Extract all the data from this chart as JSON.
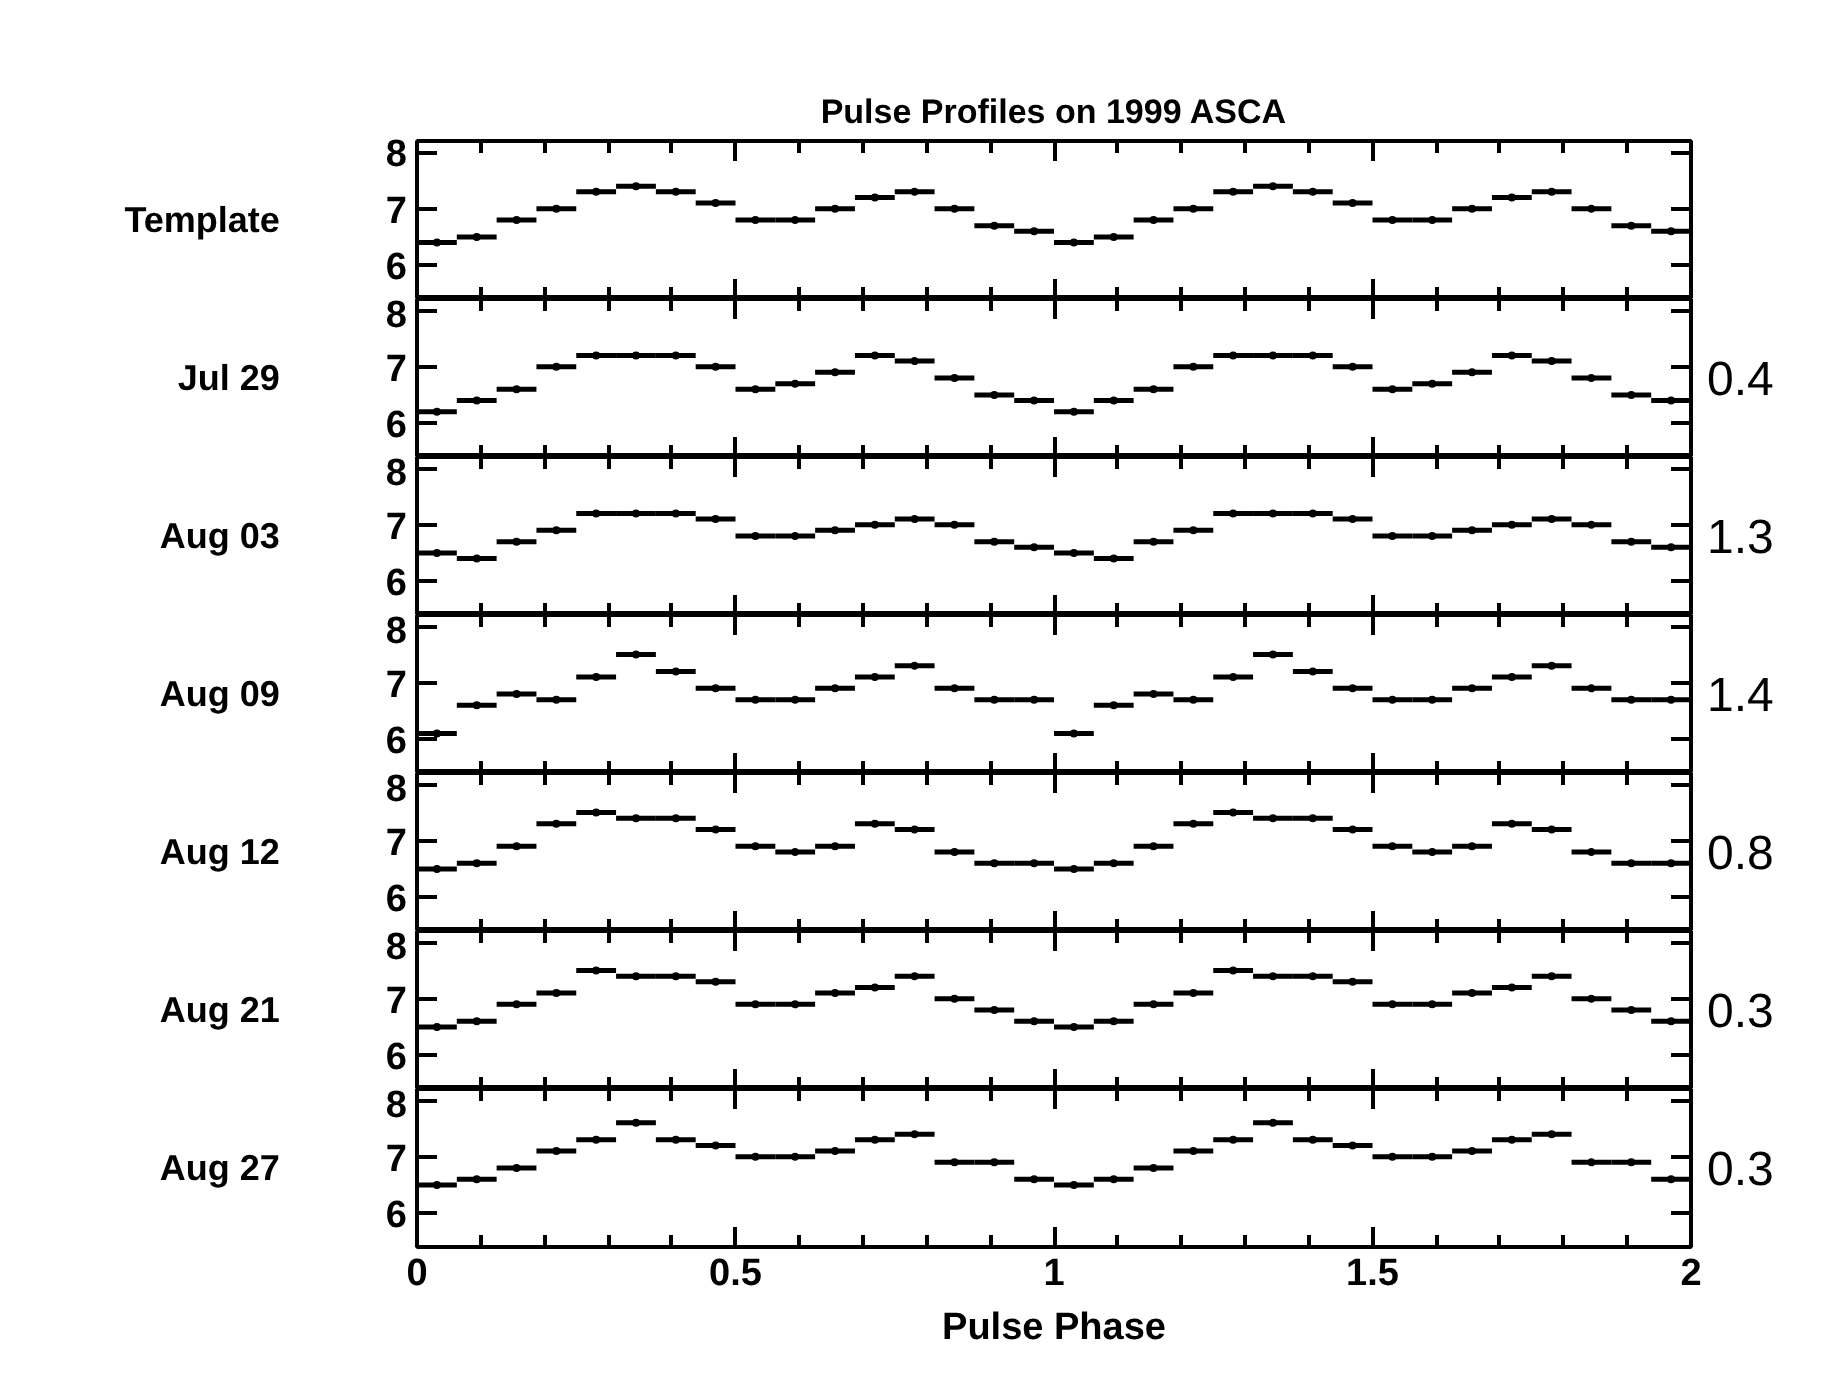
{
  "chart_data": [
    {
      "type": "scatter",
      "title": "Pulse Profiles on 1999 ASCA",
      "ylabel": "Template",
      "marker": "none",
      "grid": false,
      "tick_labels": "y",
      "xlim": [
        0,
        2
      ],
      "ylim": [
        5.4,
        8.2
      ],
      "yticks": [
        6,
        7,
        8
      ],
      "xticks": [
        0,
        {
          "value": 0.1,
          "label": null
        },
        {
          "value": 0.2,
          "label": null
        },
        {
          "value": 0.3,
          "label": null
        },
        {
          "value": 0.4,
          "label": null
        },
        0.5,
        {
          "value": 0.6,
          "label": null
        },
        {
          "value": 0.7,
          "label": null
        },
        {
          "value": 0.8,
          "label": null
        },
        {
          "value": 0.9,
          "label": null
        },
        1,
        {
          "value": 1.1,
          "label": null
        },
        {
          "value": 1.2,
          "label": null
        },
        {
          "value": 1.3,
          "label": null
        },
        {
          "value": 1.4,
          "label": null
        },
        1.5,
        {
          "value": 1.6,
          "label": null
        },
        {
          "value": 1.7,
          "label": null
        },
        {
          "value": 1.8,
          "label": null
        },
        {
          "value": 1.9,
          "label": null
        },
        2
      ],
      "x": [
        0.03125,
        0.09375,
        0.15625,
        0.21875,
        0.28125,
        0.34375,
        0.40625,
        0.46875,
        0.53125,
        0.59375,
        0.65625,
        0.71875,
        0.78125,
        0.84375,
        0.90625,
        0.96875,
        1.03125,
        1.09375,
        1.15625,
        1.21875,
        1.28125,
        1.34375,
        1.40625,
        1.46875,
        1.53125,
        1.59375,
        1.65625,
        1.71875,
        1.78125,
        1.84375,
        1.90625,
        1.96875
      ],
      "series": [
        {
          "color": "#000000",
          "values": [
            6.4,
            6.5,
            6.8,
            7.0,
            7.3,
            7.4,
            7.3,
            7.1,
            6.8,
            6.8,
            7.0,
            7.2,
            7.3,
            7.0,
            6.7,
            6.6,
            6.4,
            6.5,
            6.8,
            7.0,
            7.3,
            7.4,
            7.3,
            7.1,
            6.8,
            6.8,
            7.0,
            7.2,
            7.3,
            7.0,
            6.7,
            6.6
          ],
          "xerrors": [
            0.03125,
            0.03125,
            0.03125,
            0.03125,
            0.03125,
            0.03125,
            0.03125,
            0.03125,
            0.03125,
            0.03125,
            0.03125,
            0.03125,
            0.03125,
            0.03125,
            0.03125,
            0.03125,
            0.03125,
            0.03125,
            0.03125,
            0.03125,
            0.03125,
            0.03125,
            0.03125,
            0.03125,
            0.03125,
            0.03125,
            0.03125,
            0.03125,
            0.03125,
            0.03125,
            0.03125,
            0.03125
          ],
          "errors": [
            0.05,
            0.05,
            0.05,
            0.05,
            0.05,
            0.05,
            0.05,
            0.05,
            0.05,
            0.05,
            0.05,
            0.05,
            0.05,
            0.05,
            0.05,
            0.05,
            0.05,
            0.05,
            0.05,
            0.05,
            0.05,
            0.05,
            0.05,
            0.05,
            0.05,
            0.05,
            0.05,
            0.05,
            0.05,
            0.05,
            0.05,
            0.05
          ]
        }
      ]
    },
    {
      "type": "scatter",
      "ylabel": "Jul 29",
      "annotations": [
        "0.4"
      ],
      "marker": "none",
      "grid": false,
      "tick_labels": "y",
      "xlim": [
        0,
        2
      ],
      "ylim": [
        5.4,
        8.2
      ],
      "yticks": [
        6,
        7,
        8
      ],
      "xticks": [
        0,
        {
          "value": 0.1,
          "label": null
        },
        {
          "value": 0.2,
          "label": null
        },
        {
          "value": 0.3,
          "label": null
        },
        {
          "value": 0.4,
          "label": null
        },
        0.5,
        {
          "value": 0.6,
          "label": null
        },
        {
          "value": 0.7,
          "label": null
        },
        {
          "value": 0.8,
          "label": null
        },
        {
          "value": 0.9,
          "label": null
        },
        1,
        {
          "value": 1.1,
          "label": null
        },
        {
          "value": 1.2,
          "label": null
        },
        {
          "value": 1.3,
          "label": null
        },
        {
          "value": 1.4,
          "label": null
        },
        1.5,
        {
          "value": 1.6,
          "label": null
        },
        {
          "value": 1.7,
          "label": null
        },
        {
          "value": 1.8,
          "label": null
        },
        {
          "value": 1.9,
          "label": null
        },
        2
      ],
      "x": [
        0.03125,
        0.09375,
        0.15625,
        0.21875,
        0.28125,
        0.34375,
        0.40625,
        0.46875,
        0.53125,
        0.59375,
        0.65625,
        0.71875,
        0.78125,
        0.84375,
        0.90625,
        0.96875,
        1.03125,
        1.09375,
        1.15625,
        1.21875,
        1.28125,
        1.34375,
        1.40625,
        1.46875,
        1.53125,
        1.59375,
        1.65625,
        1.71875,
        1.78125,
        1.84375,
        1.90625,
        1.96875
      ],
      "series": [
        {
          "color": "#000000",
          "values": [
            6.2,
            6.4,
            6.6,
            7.0,
            7.2,
            7.2,
            7.2,
            7.0,
            6.6,
            6.7,
            6.9,
            7.2,
            7.1,
            6.8,
            6.5,
            6.4,
            6.2,
            6.4,
            6.6,
            7.0,
            7.2,
            7.2,
            7.2,
            7.0,
            6.6,
            6.7,
            6.9,
            7.2,
            7.1,
            6.8,
            6.5,
            6.4
          ],
          "xerrors": [
            0.03125,
            0.03125,
            0.03125,
            0.03125,
            0.03125,
            0.03125,
            0.03125,
            0.03125,
            0.03125,
            0.03125,
            0.03125,
            0.03125,
            0.03125,
            0.03125,
            0.03125,
            0.03125,
            0.03125,
            0.03125,
            0.03125,
            0.03125,
            0.03125,
            0.03125,
            0.03125,
            0.03125,
            0.03125,
            0.03125,
            0.03125,
            0.03125,
            0.03125,
            0.03125,
            0.03125,
            0.03125
          ],
          "errors": [
            0.05,
            0.05,
            0.05,
            0.05,
            0.05,
            0.05,
            0.05,
            0.05,
            0.05,
            0.05,
            0.05,
            0.05,
            0.05,
            0.05,
            0.05,
            0.05,
            0.05,
            0.05,
            0.05,
            0.05,
            0.05,
            0.05,
            0.05,
            0.05,
            0.05,
            0.05,
            0.05,
            0.05,
            0.05,
            0.05,
            0.05,
            0.05
          ]
        }
      ]
    },
    {
      "type": "scatter",
      "ylabel": "Aug 03",
      "annotations": [
        "1.3"
      ],
      "marker": "none",
      "grid": false,
      "tick_labels": "y",
      "xlim": [
        0,
        2
      ],
      "ylim": [
        5.4,
        8.2
      ],
      "yticks": [
        6,
        7,
        8
      ],
      "xticks": [
        0,
        {
          "value": 0.1,
          "label": null
        },
        {
          "value": 0.2,
          "label": null
        },
        {
          "value": 0.3,
          "label": null
        },
        {
          "value": 0.4,
          "label": null
        },
        0.5,
        {
          "value": 0.6,
          "label": null
        },
        {
          "value": 0.7,
          "label": null
        },
        {
          "value": 0.8,
          "label": null
        },
        {
          "value": 0.9,
          "label": null
        },
        1,
        {
          "value": 1.1,
          "label": null
        },
        {
          "value": 1.2,
          "label": null
        },
        {
          "value": 1.3,
          "label": null
        },
        {
          "value": 1.4,
          "label": null
        },
        1.5,
        {
          "value": 1.6,
          "label": null
        },
        {
          "value": 1.7,
          "label": null
        },
        {
          "value": 1.8,
          "label": null
        },
        {
          "value": 1.9,
          "label": null
        },
        2
      ],
      "x": [
        0.03125,
        0.09375,
        0.15625,
        0.21875,
        0.28125,
        0.34375,
        0.40625,
        0.46875,
        0.53125,
        0.59375,
        0.65625,
        0.71875,
        0.78125,
        0.84375,
        0.90625,
        0.96875,
        1.03125,
        1.09375,
        1.15625,
        1.21875,
        1.28125,
        1.34375,
        1.40625,
        1.46875,
        1.53125,
        1.59375,
        1.65625,
        1.71875,
        1.78125,
        1.84375,
        1.90625,
        1.96875
      ],
      "series": [
        {
          "color": "#000000",
          "values": [
            6.5,
            6.4,
            6.7,
            6.9,
            7.2,
            7.2,
            7.2,
            7.1,
            6.8,
            6.8,
            6.9,
            7.0,
            7.1,
            7.0,
            6.7,
            6.6,
            6.5,
            6.4,
            6.7,
            6.9,
            7.2,
            7.2,
            7.2,
            7.1,
            6.8,
            6.8,
            6.9,
            7.0,
            7.1,
            7.0,
            6.7,
            6.6
          ],
          "xerrors": [
            0.03125,
            0.03125,
            0.03125,
            0.03125,
            0.03125,
            0.03125,
            0.03125,
            0.03125,
            0.03125,
            0.03125,
            0.03125,
            0.03125,
            0.03125,
            0.03125,
            0.03125,
            0.03125,
            0.03125,
            0.03125,
            0.03125,
            0.03125,
            0.03125,
            0.03125,
            0.03125,
            0.03125,
            0.03125,
            0.03125,
            0.03125,
            0.03125,
            0.03125,
            0.03125,
            0.03125,
            0.03125
          ],
          "errors": [
            0.05,
            0.05,
            0.05,
            0.05,
            0.05,
            0.05,
            0.05,
            0.05,
            0.05,
            0.05,
            0.05,
            0.05,
            0.05,
            0.05,
            0.05,
            0.05,
            0.05,
            0.05,
            0.05,
            0.05,
            0.05,
            0.05,
            0.05,
            0.05,
            0.05,
            0.05,
            0.05,
            0.05,
            0.05,
            0.05,
            0.05,
            0.05
          ]
        }
      ]
    },
    {
      "type": "scatter",
      "ylabel": "Aug 09",
      "annotations": [
        "1.4"
      ],
      "marker": "none",
      "grid": false,
      "tick_labels": "y",
      "xlim": [
        0,
        2
      ],
      "ylim": [
        5.4,
        8.2
      ],
      "yticks": [
        6,
        7,
        8
      ],
      "xticks": [
        0,
        {
          "value": 0.1,
          "label": null
        },
        {
          "value": 0.2,
          "label": null
        },
        {
          "value": 0.3,
          "label": null
        },
        {
          "value": 0.4,
          "label": null
        },
        0.5,
        {
          "value": 0.6,
          "label": null
        },
        {
          "value": 0.7,
          "label": null
        },
        {
          "value": 0.8,
          "label": null
        },
        {
          "value": 0.9,
          "label": null
        },
        1,
        {
          "value": 1.1,
          "label": null
        },
        {
          "value": 1.2,
          "label": null
        },
        {
          "value": 1.3,
          "label": null
        },
        {
          "value": 1.4,
          "label": null
        },
        1.5,
        {
          "value": 1.6,
          "label": null
        },
        {
          "value": 1.7,
          "label": null
        },
        {
          "value": 1.8,
          "label": null
        },
        {
          "value": 1.9,
          "label": null
        },
        2
      ],
      "x": [
        0.03125,
        0.09375,
        0.15625,
        0.21875,
        0.28125,
        0.34375,
        0.40625,
        0.46875,
        0.53125,
        0.59375,
        0.65625,
        0.71875,
        0.78125,
        0.84375,
        0.90625,
        0.96875,
        1.03125,
        1.09375,
        1.15625,
        1.21875,
        1.28125,
        1.34375,
        1.40625,
        1.46875,
        1.53125,
        1.59375,
        1.65625,
        1.71875,
        1.78125,
        1.84375,
        1.90625,
        1.96875
      ],
      "series": [
        {
          "color": "#000000",
          "values": [
            6.1,
            6.6,
            6.8,
            6.7,
            7.1,
            7.5,
            7.2,
            6.9,
            6.7,
            6.7,
            6.9,
            7.1,
            7.3,
            6.9,
            6.7,
            6.7,
            6.1,
            6.6,
            6.8,
            6.7,
            7.1,
            7.5,
            7.2,
            6.9,
            6.7,
            6.7,
            6.9,
            7.1,
            7.3,
            6.9,
            6.7,
            6.7
          ],
          "xerrors": [
            0.03125,
            0.03125,
            0.03125,
            0.03125,
            0.03125,
            0.03125,
            0.03125,
            0.03125,
            0.03125,
            0.03125,
            0.03125,
            0.03125,
            0.03125,
            0.03125,
            0.03125,
            0.03125,
            0.03125,
            0.03125,
            0.03125,
            0.03125,
            0.03125,
            0.03125,
            0.03125,
            0.03125,
            0.03125,
            0.03125,
            0.03125,
            0.03125,
            0.03125,
            0.03125,
            0.03125,
            0.03125
          ],
          "errors": [
            0.05,
            0.05,
            0.05,
            0.05,
            0.05,
            0.05,
            0.05,
            0.05,
            0.05,
            0.05,
            0.05,
            0.05,
            0.05,
            0.05,
            0.05,
            0.05,
            0.05,
            0.05,
            0.05,
            0.05,
            0.05,
            0.05,
            0.05,
            0.05,
            0.05,
            0.05,
            0.05,
            0.05,
            0.05,
            0.05,
            0.05,
            0.05
          ]
        }
      ]
    },
    {
      "type": "scatter",
      "ylabel": "Aug 12",
      "annotations": [
        "0.8"
      ],
      "marker": "none",
      "grid": false,
      "tick_labels": "y",
      "xlim": [
        0,
        2
      ],
      "ylim": [
        5.4,
        8.2
      ],
      "yticks": [
        6,
        7,
        8
      ],
      "xticks": [
        0,
        {
          "value": 0.1,
          "label": null
        },
        {
          "value": 0.2,
          "label": null
        },
        {
          "value": 0.3,
          "label": null
        },
        {
          "value": 0.4,
          "label": null
        },
        0.5,
        {
          "value": 0.6,
          "label": null
        },
        {
          "value": 0.7,
          "label": null
        },
        {
          "value": 0.8,
          "label": null
        },
        {
          "value": 0.9,
          "label": null
        },
        1,
        {
          "value": 1.1,
          "label": null
        },
        {
          "value": 1.2,
          "label": null
        },
        {
          "value": 1.3,
          "label": null
        },
        {
          "value": 1.4,
          "label": null
        },
        1.5,
        {
          "value": 1.6,
          "label": null
        },
        {
          "value": 1.7,
          "label": null
        },
        {
          "value": 1.8,
          "label": null
        },
        {
          "value": 1.9,
          "label": null
        },
        2
      ],
      "x": [
        0.03125,
        0.09375,
        0.15625,
        0.21875,
        0.28125,
        0.34375,
        0.40625,
        0.46875,
        0.53125,
        0.59375,
        0.65625,
        0.71875,
        0.78125,
        0.84375,
        0.90625,
        0.96875,
        1.03125,
        1.09375,
        1.15625,
        1.21875,
        1.28125,
        1.34375,
        1.40625,
        1.46875,
        1.53125,
        1.59375,
        1.65625,
        1.71875,
        1.78125,
        1.84375,
        1.90625,
        1.96875
      ],
      "series": [
        {
          "color": "#000000",
          "values": [
            6.5,
            6.6,
            6.9,
            7.3,
            7.5,
            7.4,
            7.4,
            7.2,
            6.9,
            6.8,
            6.9,
            7.3,
            7.2,
            6.8,
            6.6,
            6.6,
            6.5,
            6.6,
            6.9,
            7.3,
            7.5,
            7.4,
            7.4,
            7.2,
            6.9,
            6.8,
            6.9,
            7.3,
            7.2,
            6.8,
            6.6,
            6.6
          ],
          "xerrors": [
            0.03125,
            0.03125,
            0.03125,
            0.03125,
            0.03125,
            0.03125,
            0.03125,
            0.03125,
            0.03125,
            0.03125,
            0.03125,
            0.03125,
            0.03125,
            0.03125,
            0.03125,
            0.03125,
            0.03125,
            0.03125,
            0.03125,
            0.03125,
            0.03125,
            0.03125,
            0.03125,
            0.03125,
            0.03125,
            0.03125,
            0.03125,
            0.03125,
            0.03125,
            0.03125,
            0.03125,
            0.03125
          ],
          "errors": [
            0.05,
            0.05,
            0.05,
            0.05,
            0.05,
            0.05,
            0.05,
            0.05,
            0.05,
            0.05,
            0.05,
            0.05,
            0.05,
            0.05,
            0.05,
            0.05,
            0.05,
            0.05,
            0.05,
            0.05,
            0.05,
            0.05,
            0.05,
            0.05,
            0.05,
            0.05,
            0.05,
            0.05,
            0.05,
            0.05,
            0.05,
            0.05
          ]
        }
      ]
    },
    {
      "type": "scatter",
      "ylabel": "Aug 21",
      "annotations": [
        "0.3"
      ],
      "marker": "none",
      "grid": false,
      "tick_labels": "y",
      "xlim": [
        0,
        2
      ],
      "ylim": [
        5.4,
        8.2
      ],
      "yticks": [
        6,
        7,
        8
      ],
      "xticks": [
        0,
        {
          "value": 0.1,
          "label": null
        },
        {
          "value": 0.2,
          "label": null
        },
        {
          "value": 0.3,
          "label": null
        },
        {
          "value": 0.4,
          "label": null
        },
        0.5,
        {
          "value": 0.6,
          "label": null
        },
        {
          "value": 0.7,
          "label": null
        },
        {
          "value": 0.8,
          "label": null
        },
        {
          "value": 0.9,
          "label": null
        },
        1,
        {
          "value": 1.1,
          "label": null
        },
        {
          "value": 1.2,
          "label": null
        },
        {
          "value": 1.3,
          "label": null
        },
        {
          "value": 1.4,
          "label": null
        },
        1.5,
        {
          "value": 1.6,
          "label": null
        },
        {
          "value": 1.7,
          "label": null
        },
        {
          "value": 1.8,
          "label": null
        },
        {
          "value": 1.9,
          "label": null
        },
        2
      ],
      "x": [
        0.03125,
        0.09375,
        0.15625,
        0.21875,
        0.28125,
        0.34375,
        0.40625,
        0.46875,
        0.53125,
        0.59375,
        0.65625,
        0.71875,
        0.78125,
        0.84375,
        0.90625,
        0.96875,
        1.03125,
        1.09375,
        1.15625,
        1.21875,
        1.28125,
        1.34375,
        1.40625,
        1.46875,
        1.53125,
        1.59375,
        1.65625,
        1.71875,
        1.78125,
        1.84375,
        1.90625,
        1.96875
      ],
      "series": [
        {
          "color": "#000000",
          "values": [
            6.5,
            6.6,
            6.9,
            7.1,
            7.5,
            7.4,
            7.4,
            7.3,
            6.9,
            6.9,
            7.1,
            7.2,
            7.4,
            7.0,
            6.8,
            6.6,
            6.5,
            6.6,
            6.9,
            7.1,
            7.5,
            7.4,
            7.4,
            7.3,
            6.9,
            6.9,
            7.1,
            7.2,
            7.4,
            7.0,
            6.8,
            6.6
          ],
          "xerrors": [
            0.03125,
            0.03125,
            0.03125,
            0.03125,
            0.03125,
            0.03125,
            0.03125,
            0.03125,
            0.03125,
            0.03125,
            0.03125,
            0.03125,
            0.03125,
            0.03125,
            0.03125,
            0.03125,
            0.03125,
            0.03125,
            0.03125,
            0.03125,
            0.03125,
            0.03125,
            0.03125,
            0.03125,
            0.03125,
            0.03125,
            0.03125,
            0.03125,
            0.03125,
            0.03125,
            0.03125,
            0.03125
          ],
          "errors": [
            0.05,
            0.05,
            0.05,
            0.05,
            0.05,
            0.05,
            0.05,
            0.05,
            0.05,
            0.05,
            0.05,
            0.05,
            0.05,
            0.05,
            0.05,
            0.05,
            0.05,
            0.05,
            0.05,
            0.05,
            0.05,
            0.05,
            0.05,
            0.05,
            0.05,
            0.05,
            0.05,
            0.05,
            0.05,
            0.05,
            0.05,
            0.05
          ]
        }
      ]
    },
    {
      "type": "scatter",
      "ylabel": "Aug 27",
      "annotations": [
        "0.3"
      ],
      "xlabel": "Pulse Phase",
      "marker": "none",
      "grid": false,
      "xlim": [
        0,
        2
      ],
      "ylim": [
        5.4,
        8.2
      ],
      "yticks": [
        6,
        7,
        8
      ],
      "xticks": [
        0,
        {
          "value": 0.1,
          "label": null
        },
        {
          "value": 0.2,
          "label": null
        },
        {
          "value": 0.3,
          "label": null
        },
        {
          "value": 0.4,
          "label": null
        },
        0.5,
        {
          "value": 0.6,
          "label": null
        },
        {
          "value": 0.7,
          "label": null
        },
        {
          "value": 0.8,
          "label": null
        },
        {
          "value": 0.9,
          "label": null
        },
        1,
        {
          "value": 1.1,
          "label": null
        },
        {
          "value": 1.2,
          "label": null
        },
        {
          "value": 1.3,
          "label": null
        },
        {
          "value": 1.4,
          "label": null
        },
        1.5,
        {
          "value": 1.6,
          "label": null
        },
        {
          "value": 1.7,
          "label": null
        },
        {
          "value": 1.8,
          "label": null
        },
        {
          "value": 1.9,
          "label": null
        },
        2
      ],
      "x": [
        0.03125,
        0.09375,
        0.15625,
        0.21875,
        0.28125,
        0.34375,
        0.40625,
        0.46875,
        0.53125,
        0.59375,
        0.65625,
        0.71875,
        0.78125,
        0.84375,
        0.90625,
        0.96875,
        1.03125,
        1.09375,
        1.15625,
        1.21875,
        1.28125,
        1.34375,
        1.40625,
        1.46875,
        1.53125,
        1.59375,
        1.65625,
        1.71875,
        1.78125,
        1.84375,
        1.90625,
        1.96875
      ],
      "series": [
        {
          "color": "#000000",
          "values": [
            6.5,
            6.6,
            6.8,
            7.1,
            7.3,
            7.6,
            7.3,
            7.2,
            7.0,
            7.0,
            7.1,
            7.3,
            7.4,
            6.9,
            6.9,
            6.6,
            6.5,
            6.6,
            6.8,
            7.1,
            7.3,
            7.6,
            7.3,
            7.2,
            7.0,
            7.0,
            7.1,
            7.3,
            7.4,
            6.9,
            6.9,
            6.6
          ],
          "xerrors": [
            0.03125,
            0.03125,
            0.03125,
            0.03125,
            0.03125,
            0.03125,
            0.03125,
            0.03125,
            0.03125,
            0.03125,
            0.03125,
            0.03125,
            0.03125,
            0.03125,
            0.03125,
            0.03125,
            0.03125,
            0.03125,
            0.03125,
            0.03125,
            0.03125,
            0.03125,
            0.03125,
            0.03125,
            0.03125,
            0.03125,
            0.03125,
            0.03125,
            0.03125,
            0.03125,
            0.03125,
            0.03125
          ],
          "errors": [
            0.05,
            0.05,
            0.05,
            0.05,
            0.05,
            0.05,
            0.05,
            0.05,
            0.05,
            0.05,
            0.05,
            0.05,
            0.05,
            0.05,
            0.05,
            0.05,
            0.05,
            0.05,
            0.05,
            0.05,
            0.05,
            0.05,
            0.05,
            0.05,
            0.05,
            0.05,
            0.05,
            0.05,
            0.05,
            0.05,
            0.05,
            0.05
          ]
        }
      ]
    }
  ]
}
